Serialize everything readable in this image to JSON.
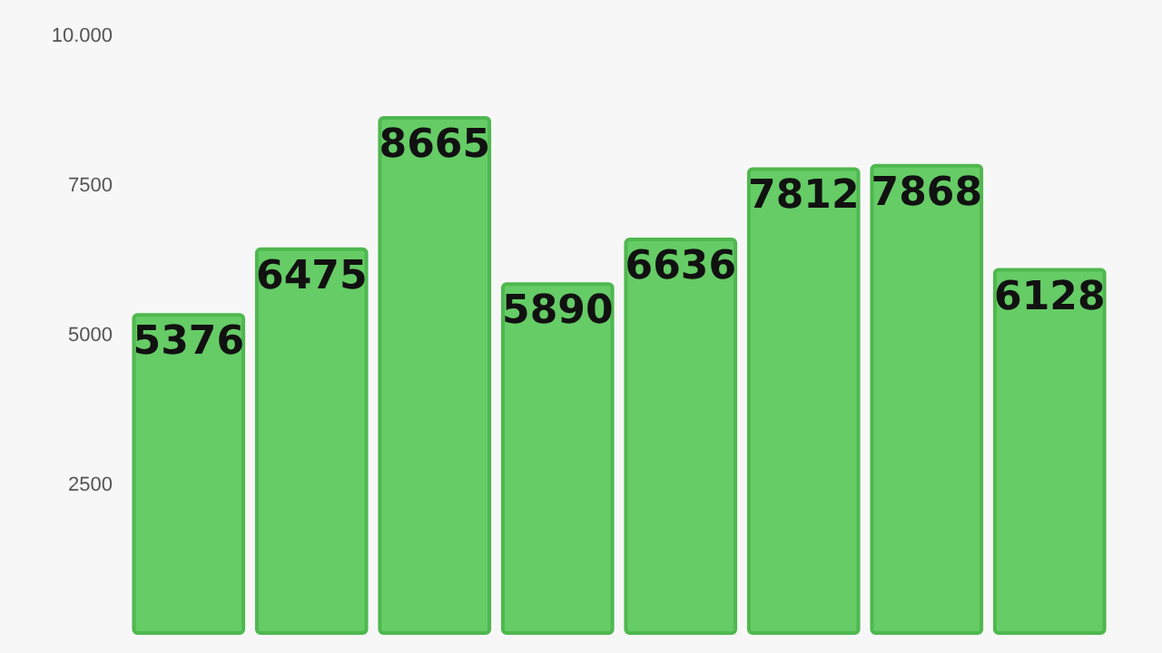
{
  "chart_data": {
    "type": "bar",
    "categories": [
      null,
      null,
      null,
      null,
      null,
      null,
      null,
      null
    ],
    "values": [
      5376,
      6475,
      8665,
      5890,
      6636,
      7812,
      7868,
      6128
    ],
    "color": "#66cc66",
    "data_labels": true,
    "ylim": [
      0,
      10000
    ],
    "yticks": [
      2500,
      5000,
      7500,
      {
        "value": 10000,
        "label": "10.000"
      }
    ],
    "grid": false
  }
}
